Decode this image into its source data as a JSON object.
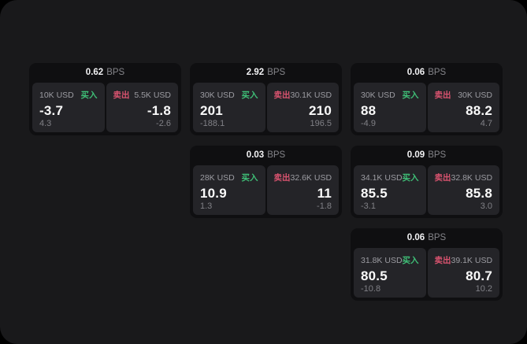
{
  "labels": {
    "buy": "买入",
    "sell": "卖出",
    "bps": "BPS"
  },
  "colors": {
    "buy": "#3fbf77",
    "sell": "#d9536f"
  },
  "cards": [
    {
      "bps": "0.62",
      "buy": {
        "size": "10K USD",
        "price": "-3.7",
        "change": "4.3"
      },
      "sell": {
        "size": "5.5K USD",
        "price": "-1.8",
        "change": "-2.6"
      }
    },
    {
      "bps": "2.92",
      "buy": {
        "size": "30K USD",
        "price": "201",
        "change": "-188.1"
      },
      "sell": {
        "size": "30.1K USD",
        "price": "210",
        "change": "196.5"
      }
    },
    {
      "bps": "0.06",
      "buy": {
        "size": "30K USD",
        "price": "88",
        "change": "-4.9"
      },
      "sell": {
        "size": "30K USD",
        "price": "88.2",
        "change": "4.7"
      }
    },
    {
      "bps": "0.03",
      "buy": {
        "size": "28K USD",
        "price": "10.9",
        "change": "1.3"
      },
      "sell": {
        "size": "32.6K USD",
        "price": "11",
        "change": "-1.8"
      }
    },
    {
      "bps": "0.09",
      "buy": {
        "size": "34.1K USD",
        "price": "85.5",
        "change": "-3.1"
      },
      "sell": {
        "size": "32.8K USD",
        "price": "85.8",
        "change": "3.0"
      }
    },
    {
      "bps": "0.06",
      "buy": {
        "size": "31.8K USD",
        "price": "80.5",
        "change": "-10.8"
      },
      "sell": {
        "size": "39.1K USD",
        "price": "80.7",
        "change": "10.2"
      }
    }
  ]
}
